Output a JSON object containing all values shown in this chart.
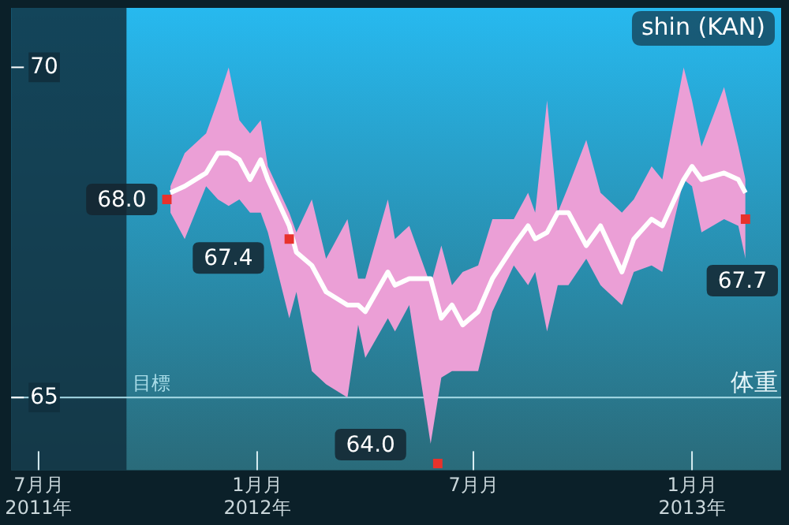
{
  "chart_data": {
    "type": "line",
    "title": "shin (KAN)",
    "ylabel": "体重",
    "xlim": [
      "2011-06-08",
      "2013-03-17"
    ],
    "ylim": [
      63.9,
      70.9
    ],
    "xticks": [
      {
        "value": "2011-07-01",
        "label": "7月月\n2011年"
      },
      {
        "value": "2012-01-01",
        "label": "1月月\n2012年"
      },
      {
        "value": "2012-07-01",
        "label": "7月月"
      },
      {
        "value": "2013-01-01",
        "label": "1月月\n2013年"
      }
    ],
    "yticks": [
      65,
      70
    ],
    "grid": false,
    "legend": false,
    "ref_lines": [
      {
        "axis": "y",
        "value": 65,
        "label": "目標",
        "color": "#a8dce8"
      }
    ],
    "bands": [
      {
        "axis": "x",
        "from": "2011-06-08",
        "to": "2011-09-13",
        "color": "#10303f"
      }
    ],
    "series": [
      {
        "type": "line",
        "color": "#ffffff",
        "marker": "none",
        "line_style": "solid",
        "x": [
          "2011-10-20",
          "2011-11-01",
          "2011-11-19",
          "2011-11-29",
          "2011-12-08",
          "2011-12-17",
          "2011-12-26",
          "2012-01-04",
          "2012-01-10",
          "2012-01-28",
          "2012-02-03",
          "2012-02-16",
          "2012-02-28",
          "2012-03-17",
          "2012-03-26",
          "2012-04-01",
          "2012-04-20",
          "2012-04-26",
          "2012-05-08",
          "2012-05-26",
          "2012-06-04",
          "2012-06-13",
          "2012-06-22",
          "2012-07-05",
          "2012-07-17",
          "2012-08-04",
          "2012-08-16",
          "2012-08-22",
          "2012-09-01",
          "2012-09-10",
          "2012-09-19",
          "2012-10-04",
          "2012-10-16",
          "2012-11-03",
          "2012-11-13",
          "2012-11-28",
          "2012-12-07",
          "2012-12-25",
          "2013-01-01",
          "2013-01-09",
          "2013-01-28",
          "2013-02-09",
          "2013-02-15"
        ],
        "values": [
          68.1,
          68.2,
          68.4,
          68.7,
          68.7,
          68.6,
          68.3,
          68.6,
          68.3,
          67.6,
          67.2,
          67.0,
          66.6,
          66.4,
          66.4,
          66.3,
          66.9,
          66.7,
          66.8,
          66.8,
          66.2,
          66.4,
          66.1,
          66.3,
          66.8,
          67.3,
          67.6,
          67.4,
          67.5,
          67.8,
          67.8,
          67.3,
          67.6,
          66.9,
          67.4,
          67.7,
          67.6,
          68.3,
          68.5,
          68.3,
          68.4,
          68.3,
          68.1
        ],
        "upper": [
          68.2,
          68.7,
          69.0,
          69.5,
          70.0,
          69.2,
          69.0,
          69.2,
          68.5,
          67.8,
          67.5,
          68.0,
          67.1,
          67.7,
          66.8,
          66.8,
          68.0,
          67.4,
          67.6,
          66.7,
          67.3,
          66.7,
          66.9,
          67.0,
          67.7,
          67.7,
          68.1,
          67.8,
          69.5,
          67.8,
          68.2,
          68.9,
          68.1,
          67.8,
          68.0,
          68.5,
          68.3,
          70.0,
          69.5,
          68.8,
          69.7,
          68.8,
          68.3
        ],
        "lower": [
          67.8,
          67.4,
          68.2,
          68.0,
          67.9,
          68.0,
          67.8,
          67.8,
          67.5,
          66.2,
          66.6,
          65.4,
          65.2,
          65.0,
          66.1,
          65.6,
          66.2,
          66.0,
          66.4,
          64.3,
          65.3,
          65.4,
          65.4,
          65.4,
          66.3,
          67.0,
          66.7,
          66.9,
          66.0,
          66.7,
          66.7,
          67.1,
          66.7,
          66.4,
          66.9,
          67.0,
          66.9,
          68.3,
          68.2,
          67.5,
          67.7,
          67.6,
          67.1
        ]
      },
      {
        "type": "scatter",
        "color": "#e8322c",
        "marker": "square",
        "x": [
          "2011-10-17",
          "2012-01-28",
          "2012-06-01",
          "2013-02-15"
        ],
        "values": [
          68.0,
          67.4,
          64.0,
          67.7
        ],
        "value_labels": [
          "68.0",
          "67.4",
          "64.0",
          "67.7"
        ]
      }
    ]
  }
}
